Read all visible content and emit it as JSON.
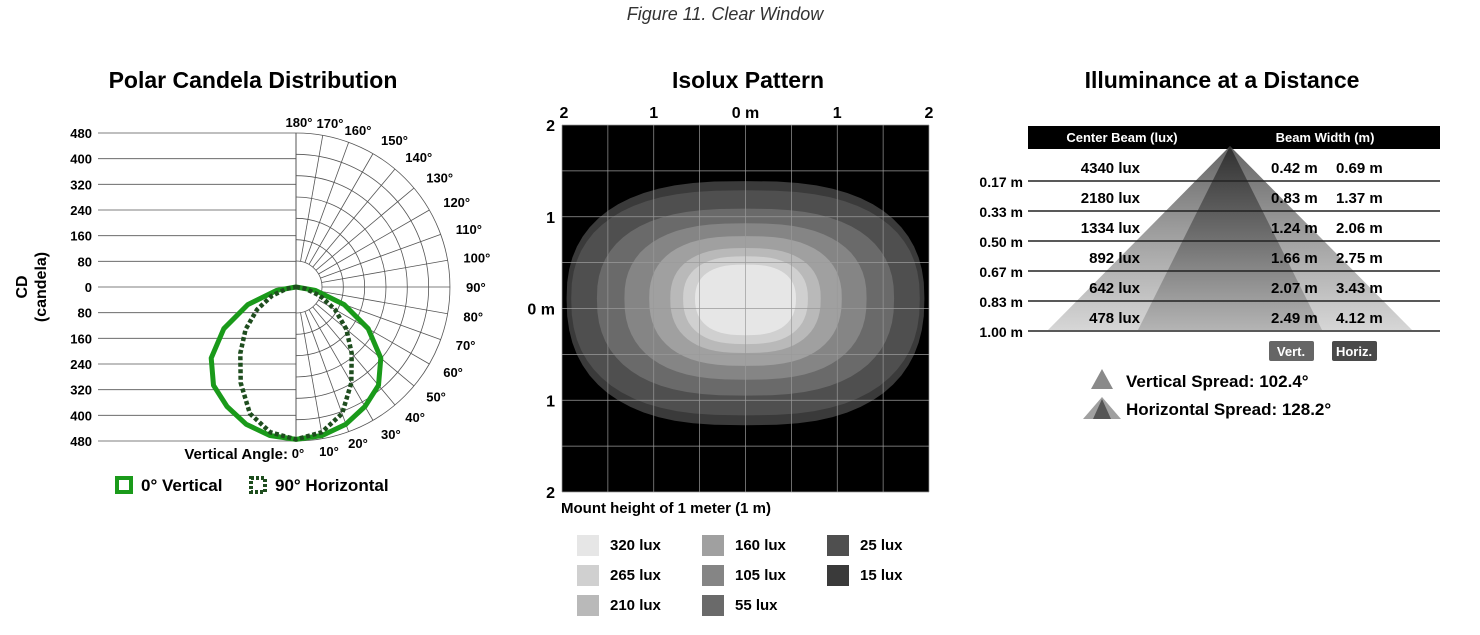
{
  "figure_title": "Figure 11. Clear Window",
  "colors": {
    "vertical_series": "#1a9a1a",
    "horizontal_series": "#1e4d1e",
    "grid": "#555555",
    "table_header_bg": "#000000",
    "badge_bg": "#666666"
  },
  "chart_data": [
    {
      "type": "polar",
      "title": "Polar Candela Distribution",
      "ylabel_line1": "CD",
      "ylabel_line2": "(candela)",
      "angle_axis_label": "Vertical Angle:",
      "radial_ticks_upper": [
        "480",
        "400",
        "320",
        "240",
        "160",
        "80",
        "0"
      ],
      "radial_ticks_lower": [
        "80",
        "160",
        "240",
        "320",
        "400",
        "480"
      ],
      "radial_max": 480,
      "angle_ticks": [
        "0°",
        "10°",
        "20°",
        "30°",
        "40°",
        "50°",
        "60°",
        "70°",
        "80°",
        "90°",
        "100°",
        "110°",
        "120°",
        "130°",
        "140°",
        "150°",
        "160°",
        "170°",
        "180°"
      ],
      "series": [
        {
          "name": "0° Vertical",
          "style": "solid",
          "angles": [
            0,
            10,
            20,
            30,
            40,
            50,
            60,
            70,
            80,
            90
          ],
          "values": [
            475,
            470,
            455,
            430,
            400,
            345,
            260,
            160,
            60,
            0
          ]
        },
        {
          "name": "90° Horizontal",
          "style": "dotted",
          "angles": [
            0,
            10,
            20,
            30,
            40,
            50,
            60,
            70,
            80,
            90
          ],
          "values": [
            475,
            460,
            420,
            345,
            270,
            205,
            140,
            80,
            30,
            0
          ]
        }
      ]
    },
    {
      "type": "heatmap",
      "title": "Isolux Pattern",
      "top_ticks": [
        "2",
        "1",
        "0 m",
        "1",
        "2"
      ],
      "left_ticks": [
        "2",
        "1",
        "0 m",
        "1",
        "2"
      ],
      "caption": "Mount height of 1 meter (1 m)",
      "contours": [
        {
          "lux": 15,
          "half_width_m": 1.95,
          "half_height_m": 1.28,
          "color": "#3a3a3a"
        },
        {
          "lux": 25,
          "half_width_m": 1.9,
          "half_height_m": 1.18,
          "color": "#4f4f4f"
        },
        {
          "lux": 55,
          "half_width_m": 1.62,
          "half_height_m": 0.98,
          "color": "#6a6a6a"
        },
        {
          "lux": 105,
          "half_width_m": 1.32,
          "half_height_m": 0.82,
          "color": "#858585"
        },
        {
          "lux": 160,
          "half_width_m": 1.05,
          "half_height_m": 0.68,
          "color": "#a0a0a0"
        },
        {
          "lux": 210,
          "half_width_m": 0.82,
          "half_height_m": 0.55,
          "color": "#b9b9b9"
        },
        {
          "lux": 265,
          "half_width_m": 0.68,
          "half_height_m": 0.46,
          "color": "#d0d0d0"
        },
        {
          "lux": 320,
          "half_width_m": 0.55,
          "half_height_m": 0.37,
          "color": "#e6e6e6"
        }
      ],
      "legend": [
        "320 lux",
        "265 lux",
        "210 lux",
        "160 lux",
        "105 lux",
        "55 lux",
        "25 lux",
        "15 lux"
      ]
    },
    {
      "type": "table",
      "title": "Illuminance at a Distance",
      "header_center": "Center Beam (lux)",
      "header_width": "Beam Width (m)",
      "rows": [
        {
          "distance": "0.17 m",
          "lux": "4340 lux",
          "vert": "0.42 m",
          "horiz": "0.69 m"
        },
        {
          "distance": "0.33 m",
          "lux": "2180 lux",
          "vert": "0.83 m",
          "horiz": "1.37 m"
        },
        {
          "distance": "0.50 m",
          "lux": "1334 lux",
          "vert": "1.24 m",
          "horiz": "2.06 m"
        },
        {
          "distance": "0.67 m",
          "lux": "892 lux",
          "vert": "1.66 m",
          "horiz": "2.75 m"
        },
        {
          "distance": "0.83 m",
          "lux": "642 lux",
          "vert": "2.07 m",
          "horiz": "3.43 m"
        },
        {
          "distance": "1.00 m",
          "lux": "478 lux",
          "vert": "2.49 m",
          "horiz": "4.12 m"
        }
      ],
      "badge_vert": "Vert.",
      "badge_horiz": "Horiz.",
      "vertical_spread": "Vertical Spread: 102.4°",
      "horizontal_spread": "Horizontal Spread: 128.2°",
      "vertical_spread_deg": 102.4,
      "horizontal_spread_deg": 128.2
    }
  ]
}
